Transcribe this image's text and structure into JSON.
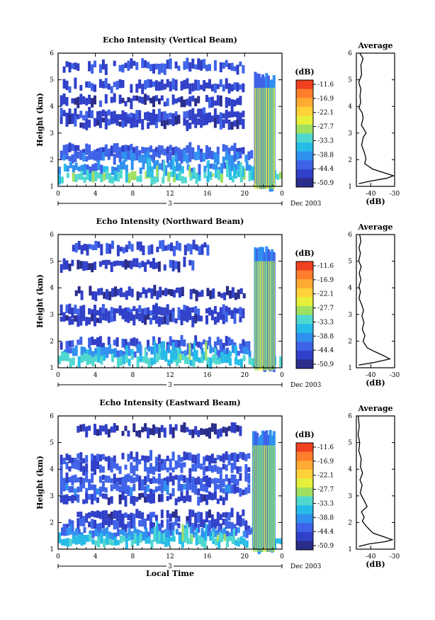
{
  "chart_data": [
    {
      "type": "heatmap",
      "title": "Echo Intensity (Vertical Beam)",
      "ylabel": "Height (km)",
      "x_ticks": [
        "0",
        "4",
        "8",
        "12",
        "16",
        "20",
        "0"
      ],
      "date_label": "3",
      "date_suffix": "Dec 2003",
      "xlim": [
        0,
        24
      ],
      "ylim": [
        1,
        6
      ],
      "y_ticks": [
        "1",
        "2",
        "3",
        "4",
        "5",
        "6"
      ],
      "colorbar": {
        "unit": "(dB)",
        "labels": [
          "-11.6",
          "-16.9",
          "-22.1",
          "-27.7",
          "-33.3",
          "-38.8",
          "-44.4",
          "-50.9"
        ]
      },
      "layers": [
        {
          "y": 5.5,
          "x0": 0.2,
          "x1": 19.8,
          "db": -45
        },
        {
          "y": 4.75,
          "x0": 0.5,
          "x1": 20,
          "db": -47
        },
        {
          "y": 4.2,
          "x0": 0.2,
          "x1": 20,
          "db": -48
        },
        {
          "y": 3.65,
          "x0": 0.2,
          "x1": 20,
          "db": -47
        },
        {
          "y": 3.4,
          "x0": 0.2,
          "x1": 20,
          "db": -48
        },
        {
          "y": 2.35,
          "x0": 0.2,
          "x1": 20,
          "db": -45
        },
        {
          "y": 2.1,
          "x0": 0.2,
          "x1": 21,
          "db": -43
        },
        {
          "y": 1.7,
          "x0": 0,
          "x1": 21.5,
          "db": -41
        },
        {
          "y": 1.35,
          "x0": 0,
          "x1": 24,
          "db": -34
        }
      ],
      "burst": {
        "x0": 21,
        "x1": 23,
        "ymax": 5.3,
        "db": -30
      },
      "average": {
        "title": "Average",
        "xlabel": "(dB)",
        "x_ticks": [
          "-40",
          "-30"
        ],
        "xlim": [
          -46,
          -30
        ],
        "ylim": [
          1,
          6
        ],
        "y_ticks": [
          "1",
          "2",
          "3",
          "4",
          "5",
          "6"
        ],
        "profile": [
          [
            -44.6,
            6.0
          ],
          [
            -43.2,
            5.8
          ],
          [
            -44.1,
            5.55
          ],
          [
            -43.8,
            5.2
          ],
          [
            -45.0,
            4.9
          ],
          [
            -44.1,
            4.65
          ],
          [
            -44.5,
            4.4
          ],
          [
            -44.2,
            4.15
          ],
          [
            -44.9,
            3.95
          ],
          [
            -43.5,
            3.75
          ],
          [
            -43.2,
            3.55
          ],
          [
            -43.9,
            3.3
          ],
          [
            -41.9,
            3.0
          ],
          [
            -43.1,
            2.85
          ],
          [
            -43.8,
            2.55
          ],
          [
            -42.6,
            2.25
          ],
          [
            -42.0,
            2.05
          ],
          [
            -42.5,
            1.85
          ],
          [
            -39.2,
            1.65
          ],
          [
            -34.0,
            1.5
          ],
          [
            -30.5,
            1.4
          ],
          [
            -33.5,
            1.3
          ],
          [
            -40.0,
            1.2
          ],
          [
            -45.0,
            1.1
          ]
        ]
      }
    },
    {
      "type": "heatmap",
      "title": "Echo Intensity (Northward Beam)",
      "ylabel": "Height (km)",
      "x_ticks": [
        "0",
        "4",
        "8",
        "12",
        "16",
        "20",
        "0"
      ],
      "date_label": "3",
      "date_suffix": "Dec 2003",
      "xlim": [
        0,
        24
      ],
      "ylim": [
        1,
        6
      ],
      "y_ticks": [
        "1",
        "2",
        "3",
        "4",
        "5",
        "6"
      ],
      "colorbar": {
        "unit": "(dB)",
        "labels": [
          "-11.6",
          "-16.9",
          "-22.1",
          "-27.7",
          "-33.3",
          "-38.8",
          "-44.4",
          "-50.9"
        ]
      },
      "layers": [
        {
          "y": 5.5,
          "x0": 1.5,
          "x1": 16.5,
          "db": -46
        },
        {
          "y": 4.85,
          "x0": 0.2,
          "x1": 14.5,
          "db": -48
        },
        {
          "y": 3.8,
          "x0": 1.5,
          "x1": 20,
          "db": -49
        },
        {
          "y": 3.1,
          "x0": 0.2,
          "x1": 19.8,
          "db": -47
        },
        {
          "y": 2.85,
          "x0": 0.2,
          "x1": 19.8,
          "db": -48
        },
        {
          "y": 1.9,
          "x0": 0.2,
          "x1": 20.5,
          "db": -46
        },
        {
          "y": 1.6,
          "x0": 0,
          "x1": 21.5,
          "db": -41
        },
        {
          "y": 1.3,
          "x0": 0,
          "x1": 24,
          "db": -35
        }
      ],
      "burst": {
        "x0": 21,
        "x1": 23,
        "ymax": 5.6,
        "db": -31
      },
      "average": {
        "title": "Average",
        "xlabel": "(dB)",
        "x_ticks": [
          "-40",
          "-30"
        ],
        "xlim": [
          -46,
          -30
        ],
        "ylim": [
          1,
          6
        ],
        "y_ticks": [
          "1",
          "2",
          "3",
          "4",
          "5",
          "6"
        ],
        "profile": [
          [
            -44.6,
            6.0
          ],
          [
            -44.1,
            5.75
          ],
          [
            -44.9,
            5.5
          ],
          [
            -44.3,
            5.3
          ],
          [
            -45.0,
            5.0
          ],
          [
            -44.0,
            4.8
          ],
          [
            -44.8,
            4.55
          ],
          [
            -44.1,
            4.3
          ],
          [
            -44.9,
            4.05
          ],
          [
            -44.3,
            3.85
          ],
          [
            -44.9,
            3.6
          ],
          [
            -43.9,
            3.4
          ],
          [
            -43.0,
            3.15
          ],
          [
            -43.7,
            2.95
          ],
          [
            -42.8,
            2.7
          ],
          [
            -43.5,
            2.45
          ],
          [
            -42.4,
            2.2
          ],
          [
            -43.2,
            2.0
          ],
          [
            -41.5,
            1.75
          ],
          [
            -38.2,
            1.6
          ],
          [
            -34.5,
            1.45
          ],
          [
            -32.0,
            1.33
          ],
          [
            -38.5,
            1.2
          ],
          [
            -45.0,
            1.1
          ]
        ]
      }
    },
    {
      "type": "heatmap",
      "title": "Echo Intensity (Eastward Beam)",
      "ylabel": "Height (km)",
      "xlabel": "Local Time",
      "x_ticks": [
        "0",
        "4",
        "8",
        "12",
        "16",
        "20",
        "0"
      ],
      "date_label": "3",
      "date_suffix": "Dec 2003",
      "xlim": [
        0,
        24
      ],
      "ylim": [
        1,
        6
      ],
      "y_ticks": [
        "1",
        "2",
        "3",
        "4",
        "5",
        "6"
      ],
      "colorbar": {
        "unit": "(dB)",
        "labels": [
          "-11.6",
          "-16.9",
          "-22.1",
          "-27.7",
          "-33.3",
          "-38.8",
          "-44.4",
          "-50.9"
        ]
      },
      "layers": [
        {
          "y": 5.45,
          "x0": 2,
          "x1": 19.5,
          "db": -49
        },
        {
          "y": 4.4,
          "x0": 0.2,
          "x1": 20.5,
          "db": -46
        },
        {
          "y": 4.05,
          "x0": 0.2,
          "x1": 20.5,
          "db": -45
        },
        {
          "y": 3.6,
          "x0": 0.2,
          "x1": 20.5,
          "db": -45
        },
        {
          "y": 3.25,
          "x0": 0.2,
          "x1": 20.5,
          "db": -44
        },
        {
          "y": 2.9,
          "x0": 0.2,
          "x1": 18,
          "db": -48
        },
        {
          "y": 2.25,
          "x0": 2,
          "x1": 20,
          "db": -48
        },
        {
          "y": 1.9,
          "x0": 0.2,
          "x1": 20.5,
          "db": -46
        },
        {
          "y": 1.6,
          "x0": 0,
          "x1": 21,
          "db": -42
        },
        {
          "y": 1.3,
          "x0": 0,
          "x1": 24,
          "db": -36
        }
      ],
      "burst": {
        "x0": 20.8,
        "x1": 23,
        "ymax": 5.5,
        "db": -31
      },
      "average": {
        "title": "Average",
        "xlabel": "(dB)",
        "x_ticks": [
          "-40",
          "-30"
        ],
        "xlim": [
          -46,
          -30
        ],
        "ylim": [
          1,
          6
        ],
        "y_ticks": [
          "1",
          "2",
          "3",
          "4",
          "5",
          "6"
        ],
        "profile": [
          [
            -45.2,
            6.0
          ],
          [
            -44.8,
            5.6
          ],
          [
            -45.3,
            5.3
          ],
          [
            -44.6,
            5.0
          ],
          [
            -45.0,
            4.7
          ],
          [
            -44.0,
            4.4
          ],
          [
            -44.3,
            4.1
          ],
          [
            -43.4,
            3.85
          ],
          [
            -44.5,
            3.6
          ],
          [
            -43.6,
            3.4
          ],
          [
            -44.4,
            3.1
          ],
          [
            -42.9,
            2.85
          ],
          [
            -41.5,
            2.6
          ],
          [
            -43.9,
            2.4
          ],
          [
            -42.7,
            2.2
          ],
          [
            -43.5,
            2.05
          ],
          [
            -41.8,
            1.85
          ],
          [
            -39.0,
            1.6
          ],
          [
            -34.0,
            1.45
          ],
          [
            -31.0,
            1.35
          ],
          [
            -34.0,
            1.28
          ],
          [
            -40.5,
            1.2
          ],
          [
            -45.0,
            1.1
          ]
        ]
      }
    }
  ]
}
